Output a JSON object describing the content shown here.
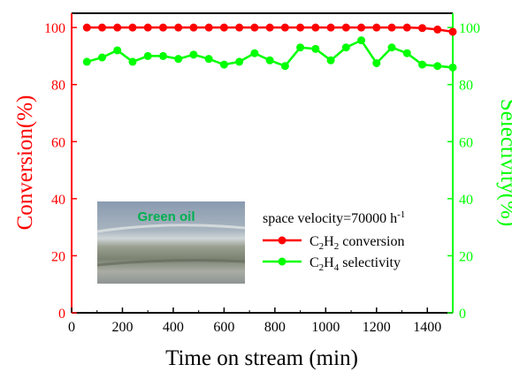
{
  "chart_data": {
    "type": "line",
    "xlabel": "Time on stream (min)",
    "ylabel_left": "Conversion(%)",
    "ylabel_right": "Selectivity(%)",
    "xlim": [
      0,
      1500
    ],
    "ylim_left": [
      0,
      105
    ],
    "ylim_right": [
      0,
      105
    ],
    "x_ticks": [
      0,
      200,
      400,
      600,
      800,
      1000,
      1200,
      1400
    ],
    "x_tick_labels": [
      "0",
      "200",
      "400",
      "600",
      "800",
      "1000",
      "1200",
      "1400"
    ],
    "y_ticks": [
      0,
      20,
      40,
      60,
      80,
      100
    ],
    "y_tick_labels": [
      "0",
      "20",
      "40",
      "60",
      "80",
      "100"
    ],
    "grid": false,
    "legend_position": "center-right",
    "legend_title": "space velocity=70000 h",
    "legend_title_sup": "-1",
    "inset_image_label": "Green oil",
    "x": [
      60,
      120,
      180,
      240,
      300,
      360,
      420,
      480,
      540,
      600,
      660,
      720,
      780,
      840,
      900,
      960,
      1020,
      1080,
      1140,
      1200,
      1260,
      1320,
      1380,
      1440,
      1500
    ],
    "series": [
      {
        "name": "C2H2 conversion",
        "legend_parts": [
          [
            "C",
            ""
          ],
          [
            "2",
            "sub"
          ],
          [
            "H",
            ""
          ],
          [
            "2",
            "sub"
          ],
          [
            " conversion",
            ""
          ]
        ],
        "axis": "left",
        "color": "#ff0000",
        "values": [
          100,
          100,
          100,
          100,
          100,
          100,
          100,
          100,
          100,
          100,
          100,
          100,
          100,
          100,
          100,
          100,
          100,
          100,
          100,
          100,
          100,
          100,
          99.8,
          99.3,
          98.5
        ]
      },
      {
        "name": "C2H4 selectivity",
        "legend_parts": [
          [
            "C",
            ""
          ],
          [
            "2",
            "sub"
          ],
          [
            "H",
            ""
          ],
          [
            "4",
            "sub"
          ],
          [
            " selectivity",
            ""
          ]
        ],
        "axis": "right",
        "color": "#00ff00",
        "values": [
          88,
          89.5,
          92,
          88,
          90,
          90,
          89,
          90.5,
          89,
          87,
          88,
          91,
          88.5,
          86.5,
          93,
          92.5,
          88.5,
          93,
          95.5,
          87.5,
          93,
          91,
          87,
          86.5,
          86
        ]
      }
    ]
  }
}
